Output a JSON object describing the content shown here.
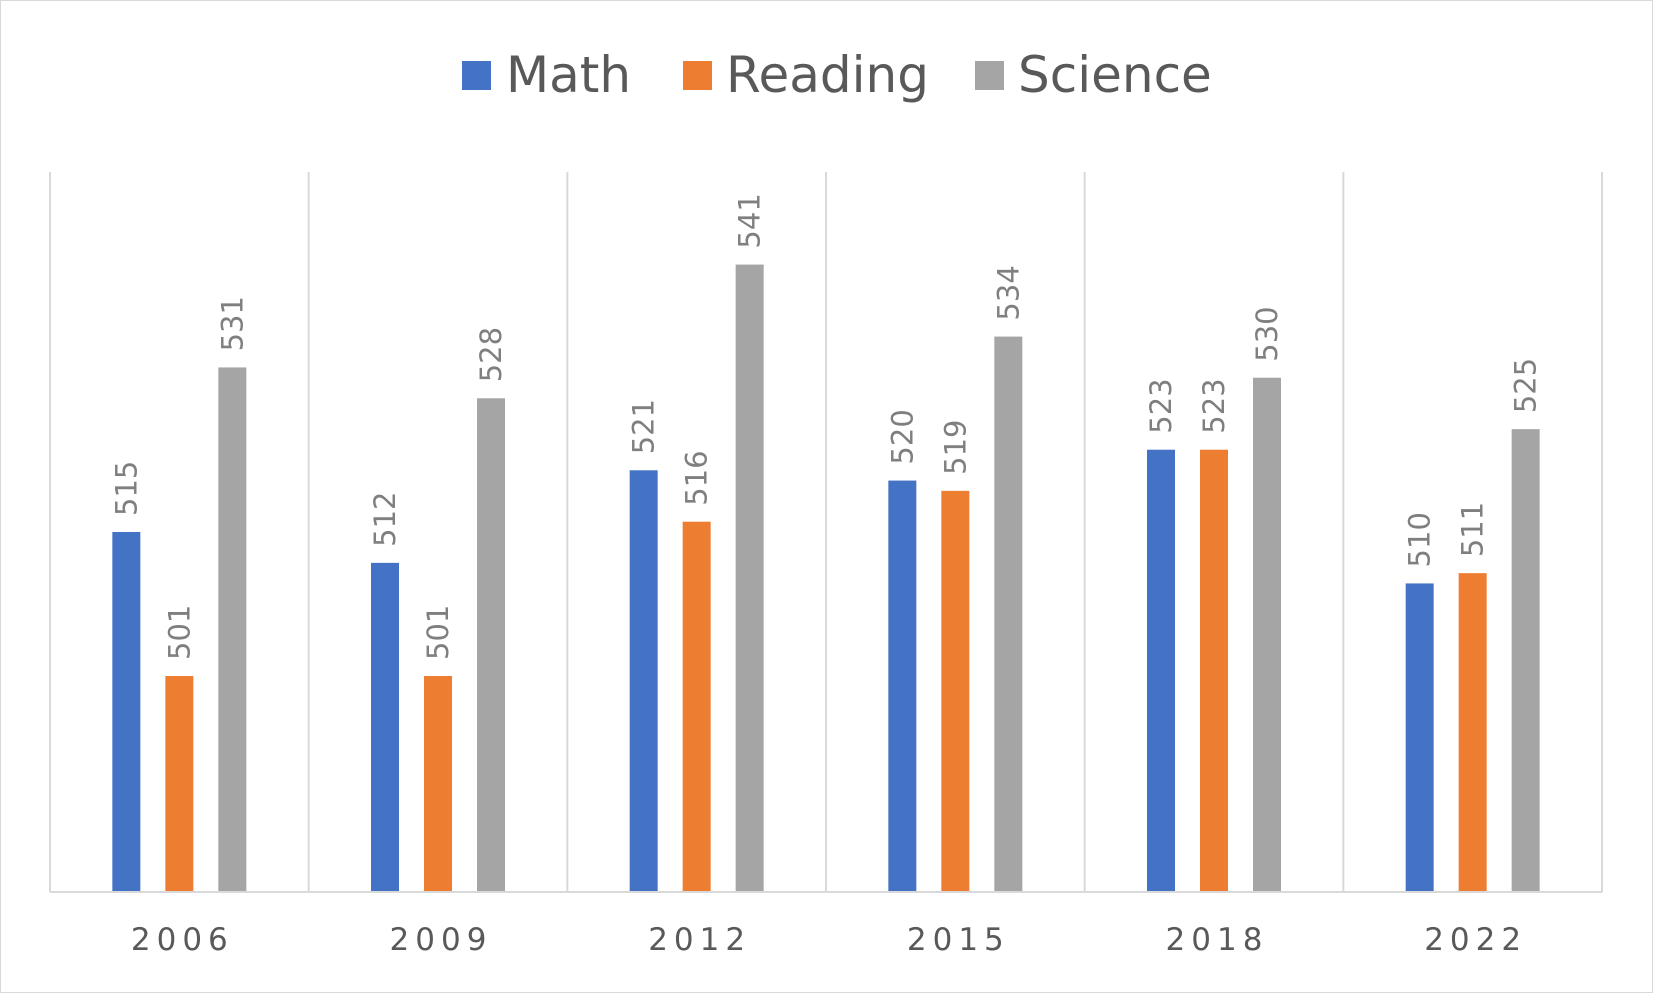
{
  "chart_data": {
    "type": "bar",
    "title": "",
    "xlabel": "",
    "ylabel": "",
    "categories": [
      "2006",
      "2009",
      "2012",
      "2015",
      "2018",
      "2022"
    ],
    "series": [
      {
        "name": "Math",
        "color": "#4472C4",
        "values": [
          515,
          512,
          521,
          520,
          523,
          510
        ]
      },
      {
        "name": "Reading",
        "color": "#ED7D31",
        "values": [
          501,
          501,
          516,
          519,
          523,
          511
        ]
      },
      {
        "name": "Science",
        "color": "#A5A5A5",
        "values": [
          531,
          528,
          541,
          534,
          530,
          525
        ]
      }
    ],
    "ylim": [
      480,
      550
    ],
    "legend_position": "top-center",
    "vertical_gridlines": true,
    "data_labels": "rotated-vertical"
  }
}
